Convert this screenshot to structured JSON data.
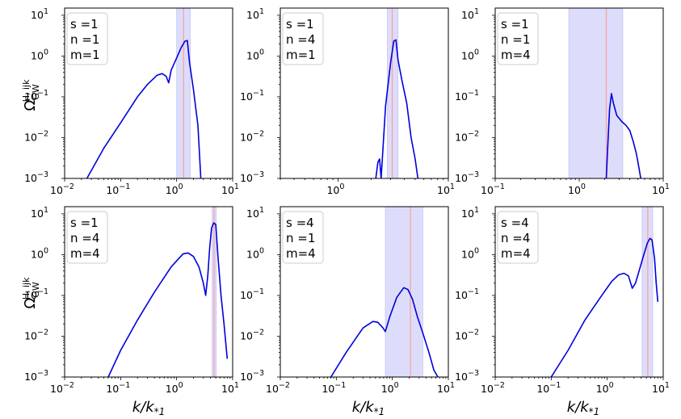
{
  "figure": {
    "ylabel": "Ω_GW^{H, ijk}",
    "xlabel": "k/k_{*1}"
  },
  "colors": {
    "curve": "#0000dd",
    "band": "#ddddfb",
    "line": "#f4a7a7"
  },
  "chart_data": [
    {
      "type": "line",
      "legend": [
        "s =1",
        "n =1",
        "m=1"
      ],
      "xscale": "log",
      "yscale": "log",
      "xlim": [
        0.01,
        10
      ],
      "ylim": [
        0.001,
        15
      ],
      "xticks": [
        0.01,
        0.1,
        1,
        10
      ],
      "yticks": [
        0.001,
        0.01,
        0.1,
        1,
        10
      ],
      "band": [
        1.0,
        1.75
      ],
      "vline": 1.33,
      "series": [
        {
          "x": [
            0.025,
            0.05,
            0.1,
            0.2,
            0.3,
            0.45,
            0.55,
            0.65,
            0.72,
            0.8,
            1.0,
            1.2,
            1.4,
            1.55,
            1.7,
            2.0,
            2.4,
            2.7
          ],
          "y": [
            0.001,
            0.0055,
            0.023,
            0.1,
            0.2,
            0.34,
            0.37,
            0.32,
            0.22,
            0.45,
            0.9,
            1.6,
            2.3,
            2.4,
            0.7,
            0.15,
            0.02,
            0.001
          ]
        }
      ]
    },
    {
      "type": "line",
      "legend": [
        "s =1",
        "n =4",
        "m=1"
      ],
      "xscale": "log",
      "yscale": "log",
      "xlim": [
        0.3,
        10
      ],
      "ylim": [
        0.001,
        15
      ],
      "xticks": [
        1,
        10
      ],
      "yticks": [
        0.001,
        0.01,
        0.1,
        1,
        10
      ],
      "band": [
        2.8,
        3.5
      ],
      "vline": 3.1,
      "series": [
        {
          "x": [
            2.2,
            2.3,
            2.38,
            2.46,
            2.7,
            3.0,
            3.2,
            3.35,
            3.5,
            3.8,
            4.2,
            4.6,
            5.0,
            5.3
          ],
          "y": [
            0.001,
            0.0025,
            0.003,
            0.001,
            0.06,
            0.7,
            2.3,
            2.5,
            0.8,
            0.25,
            0.07,
            0.01,
            0.003,
            0.001
          ]
        }
      ]
    },
    {
      "type": "line",
      "legend": [
        "s =1",
        "n =1",
        "m=4"
      ],
      "xscale": "log",
      "yscale": "log",
      "xlim": [
        0.1,
        10
      ],
      "ylim": [
        0.001,
        15
      ],
      "xticks": [
        0.1,
        1,
        10
      ],
      "yticks": [
        0.001,
        0.01,
        0.1,
        1,
        10
      ],
      "band": [
        0.75,
        3.3
      ],
      "vline": 2.1,
      "series": [
        {
          "x": [
            2.1,
            2.2,
            2.3,
            2.42,
            2.55,
            2.8,
            3.2,
            3.6,
            4.0,
            4.4,
            4.8,
            5.1,
            5.4
          ],
          "y": [
            0.001,
            0.008,
            0.05,
            0.12,
            0.07,
            0.035,
            0.025,
            0.02,
            0.015,
            0.008,
            0.004,
            0.002,
            0.001
          ]
        }
      ]
    },
    {
      "type": "line",
      "legend": [
        "s =1",
        "n =4",
        "m=4"
      ],
      "xscale": "log",
      "yscale": "log",
      "xlim": [
        0.01,
        10
      ],
      "ylim": [
        0.001,
        15
      ],
      "xticks": [
        0.01,
        0.1,
        1,
        10
      ],
      "yticks": [
        0.001,
        0.01,
        0.1,
        1,
        10
      ],
      "band": [
        4.3,
        5.1
      ],
      "vline": 4.65,
      "series": [
        {
          "x": [
            0.06,
            0.1,
            0.2,
            0.4,
            0.8,
            1.3,
            1.6,
            2.0,
            2.5,
            3.0,
            3.3,
            3.6,
            3.9,
            4.2,
            4.6,
            5.0,
            5.5,
            6.2,
            7.0,
            8.0
          ],
          "y": [
            0.001,
            0.0045,
            0.025,
            0.12,
            0.5,
            1.05,
            1.1,
            0.9,
            0.5,
            0.2,
            0.1,
            0.3,
            1.5,
            4.5,
            6.0,
            5.5,
            0.8,
            0.1,
            0.02,
            0.0028
          ]
        }
      ]
    },
    {
      "type": "line",
      "legend": [
        "s =4",
        "n =1",
        "m=4"
      ],
      "xscale": "log",
      "yscale": "log",
      "xlim": [
        0.01,
        10
      ],
      "ylim": [
        0.001,
        15
      ],
      "xticks": [
        0.01,
        0.1,
        1,
        10
      ],
      "yticks": [
        0.001,
        0.01,
        0.1,
        1,
        10
      ],
      "band": [
        0.75,
        3.5
      ],
      "vline": 2.1,
      "series": [
        {
          "x": [
            0.08,
            0.15,
            0.3,
            0.45,
            0.55,
            0.68,
            0.75,
            0.9,
            1.2,
            1.6,
            1.9,
            2.3,
            2.8,
            3.5,
            4.5,
            5.5,
            6.5
          ],
          "y": [
            0.001,
            0.004,
            0.016,
            0.023,
            0.022,
            0.016,
            0.013,
            0.03,
            0.09,
            0.155,
            0.14,
            0.08,
            0.03,
            0.012,
            0.004,
            0.0015,
            0.001
          ]
        }
      ]
    },
    {
      "type": "line",
      "legend": [
        "s =4",
        "n =4",
        "m=4"
      ],
      "xscale": "log",
      "yscale": "log",
      "xlim": [
        0.01,
        10
      ],
      "ylim": [
        0.001,
        15
      ],
      "xticks": [
        0.01,
        0.1,
        1,
        10
      ],
      "yticks": [
        0.001,
        0.01,
        0.1,
        1,
        10
      ],
      "band": [
        4.2,
        6.5
      ],
      "vline": 5.3,
      "series": [
        {
          "x": [
            0.1,
            0.2,
            0.4,
            0.8,
            1.2,
            1.6,
            2.0,
            2.4,
            2.8,
            3.2,
            3.8,
            4.5,
            5.2,
            5.8,
            6.3,
            7.0,
            7.5,
            8.0
          ],
          "y": [
            0.001,
            0.0045,
            0.025,
            0.1,
            0.22,
            0.32,
            0.35,
            0.3,
            0.15,
            0.2,
            0.45,
            1.0,
            1.9,
            2.5,
            2.3,
            0.8,
            0.2,
            0.07
          ]
        }
      ]
    }
  ]
}
